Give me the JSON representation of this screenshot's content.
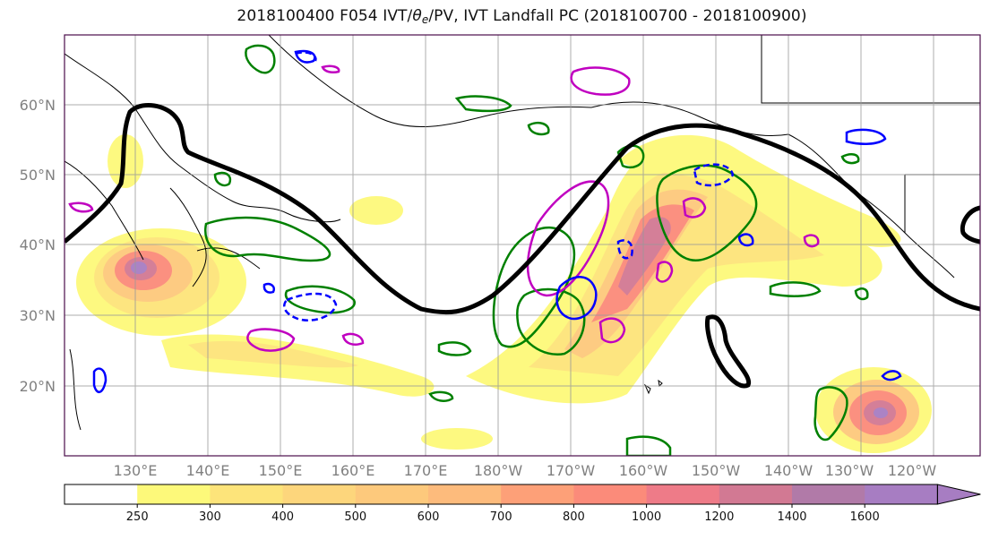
{
  "title": {
    "prefix": "2018100400 F054 IVT/",
    "theta": "θ",
    "theta_sub": "e",
    "suffix": "/PV, IVT Landfall PC (2018100700 - 2018100900)"
  },
  "map": {
    "lat_labels": [
      "60°N",
      "50°N",
      "40°N",
      "30°N",
      "20°N"
    ],
    "lon_labels": [
      "130°E",
      "140°E",
      "150°E",
      "160°E",
      "170°E",
      "180°W",
      "170°W",
      "160°W",
      "150°W",
      "140°W",
      "130°W",
      "120°W"
    ],
    "grid_color": "#999999",
    "label_color": "#808080",
    "frame_color": "#4b0d4b"
  },
  "colorbar": {
    "levels": [
      "250",
      "300",
      "400",
      "500",
      "600",
      "700",
      "800",
      "1000",
      "1200",
      "1400",
      "1600"
    ],
    "colors": [
      "#ffffff",
      "#fdf97a",
      "#fde47a",
      "#fdd67c",
      "#fdc97c",
      "#fdbb7c",
      "#fda078",
      "#fb8b7a",
      "#ee7b88",
      "#d27993",
      "#b17aa8",
      "#a77dc2"
    ],
    "extend": "max"
  },
  "legend_colors": {
    "pv_contour": "#008000",
    "theta_contour": "#c000c0",
    "wind_contour": "#0000ff",
    "pc_line": "#000000"
  }
}
